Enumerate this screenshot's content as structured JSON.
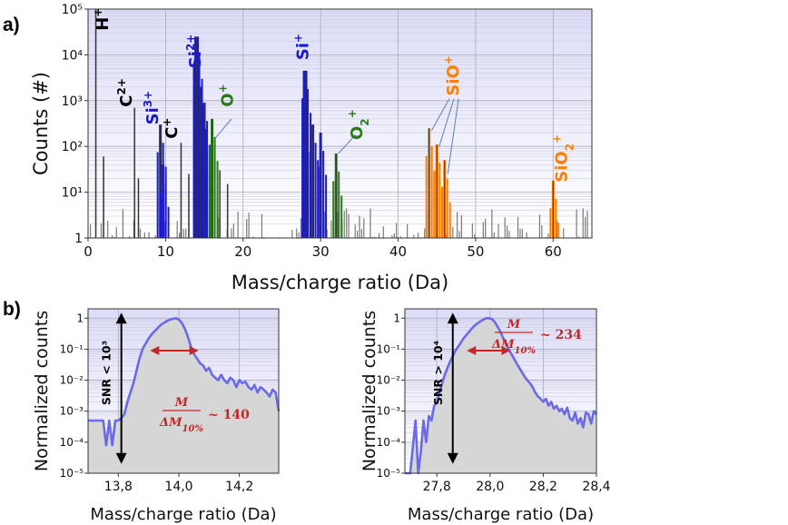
{
  "panel_labels": {
    "a": "a)",
    "b": "b)"
  },
  "chart_data": [
    {
      "id": "a",
      "type": "bar",
      "title": "",
      "xlabel": "Mass/charge ratio (Da)",
      "ylabel": "Counts (#)",
      "yscale": "log",
      "xlim": [
        0,
        65
      ],
      "ylim": [
        1,
        100000
      ],
      "xticks": [
        "0",
        "10",
        "20",
        "30",
        "40",
        "50",
        "60"
      ],
      "yticks": [
        "1",
        "10¹",
        "10²",
        "10³",
        "10⁴",
        "10⁵"
      ],
      "colors": {
        "background": "#e6e6fa",
        "bar": "#555555",
        "Si": "#1a1acc",
        "O": "#2d7a1a",
        "SiO": "#ff8000",
        "C": "#000000"
      },
      "peaks": [
        {
          "x": 1.0,
          "y": 100000,
          "group": "H"
        },
        {
          "x": 2.0,
          "y": 60,
          "group": "other"
        },
        {
          "x": 6.0,
          "y": 700,
          "group": "C"
        },
        {
          "x": 6.5,
          "y": 20,
          "group": "other"
        },
        {
          "x": 9.33,
          "y": 300,
          "group": "Si"
        },
        {
          "x": 9.67,
          "y": 40,
          "group": "Si"
        },
        {
          "x": 12.0,
          "y": 120,
          "group": "C"
        },
        {
          "x": 13.0,
          "y": 25,
          "group": "other"
        },
        {
          "x": 14.0,
          "y": 25000,
          "group": "Si"
        },
        {
          "x": 14.5,
          "y": 2000,
          "group": "Si"
        },
        {
          "x": 15.0,
          "y": 900,
          "group": "Si"
        },
        {
          "x": 16.0,
          "y": 400,
          "group": "O"
        },
        {
          "x": 17.0,
          "y": 30,
          "group": "other"
        },
        {
          "x": 18.0,
          "y": 15,
          "group": "other"
        },
        {
          "x": 28.0,
          "y": 4500,
          "group": "Si"
        },
        {
          "x": 29.0,
          "y": 300,
          "group": "Si"
        },
        {
          "x": 30.0,
          "y": 200,
          "group": "Si"
        },
        {
          "x": 32.0,
          "y": 70,
          "group": "O"
        },
        {
          "x": 44.0,
          "y": 250,
          "group": "SiO"
        },
        {
          "x": 45.0,
          "y": 110,
          "group": "SiO"
        },
        {
          "x": 46.0,
          "y": 50,
          "group": "SiO"
        },
        {
          "x": 60.0,
          "y": 18,
          "group": "SiO"
        }
      ],
      "labels": [
        {
          "text": "H",
          "sup": "+",
          "x": 2.6,
          "y": 60000,
          "color": "#000000",
          "rotate": true
        },
        {
          "text": "C",
          "sup": "2+",
          "x": 5.6,
          "y": 1500,
          "color": "#000000",
          "rotate": true
        },
        {
          "text": "Si",
          "sup": "3+",
          "x": 9.0,
          "y": 700,
          "color": "#1a1acc",
          "rotate": true
        },
        {
          "text": "C",
          "sup": "+",
          "x": 11.5,
          "y": 250,
          "color": "#000000",
          "rotate": true
        },
        {
          "text": "Si",
          "sup": "2+",
          "x": 14.5,
          "y": 12000,
          "color": "#1a1acc",
          "rotate": true
        },
        {
          "text": "O",
          "sup": "+",
          "x": 18.7,
          "y": 1300,
          "color": "#2d7a1a",
          "rotate": true
        },
        {
          "text": "Si",
          "sup": "+",
          "x": 28.4,
          "y": 15000,
          "color": "#1a1acc",
          "rotate": true
        },
        {
          "text": "O",
          "sub": "2",
          "sup": "+",
          "x": 35.4,
          "y": 300,
          "color": "#2d7a1a",
          "rotate": true
        },
        {
          "text": "SiO",
          "sup": "+",
          "x": 47.8,
          "y": 3500,
          "color": "#ff8000",
          "rotate": true
        },
        {
          "text": "SiO",
          "sub": "2",
          "sup": "+",
          "x": 61.8,
          "y": 55,
          "color": "#ff8000",
          "rotate": true
        }
      ]
    },
    {
      "id": "b-left",
      "type": "area",
      "xlabel": "Mass/charge ratio (Da)",
      "ylabel": "Normalized counts",
      "yscale": "log",
      "xlim": [
        13.7,
        14.33
      ],
      "ylim": [
        1e-05,
        2
      ],
      "xticks": [
        "13,8",
        "14,0",
        "14,2"
      ],
      "xtick_values": [
        13.8,
        14.0,
        14.2
      ],
      "yticks": [
        "10⁻⁵",
        "10⁻⁴",
        "10⁻³",
        "10⁻²",
        "10⁻¹",
        "1"
      ],
      "x": [
        13.7,
        13.72,
        13.74,
        13.75,
        13.76,
        13.77,
        13.78,
        13.79,
        13.8,
        13.81,
        13.82,
        13.83,
        13.84,
        13.85,
        13.86,
        13.87,
        13.88,
        13.89,
        13.9,
        13.91,
        13.92,
        13.93,
        13.94,
        13.95,
        13.96,
        13.97,
        13.98,
        13.99,
        14.0,
        14.01,
        14.02,
        14.03,
        14.04,
        14.05,
        14.06,
        14.07,
        14.08,
        14.09,
        14.1,
        14.11,
        14.12,
        14.13,
        14.14,
        14.15,
        14.16,
        14.17,
        14.18,
        14.19,
        14.2,
        14.21,
        14.22,
        14.23,
        14.24,
        14.25,
        14.26,
        14.27,
        14.28,
        14.29,
        14.3,
        14.31,
        14.32,
        14.33
      ],
      "y": [
        0.0005,
        0.0005,
        0.0005,
        0.0005,
        8e-05,
        0.0005,
        8e-05,
        0.0005,
        0.0005,
        0.0006,
        0.0008,
        0.002,
        0.004,
        0.008,
        0.02,
        0.05,
        0.1,
        0.15,
        0.22,
        0.3,
        0.38,
        0.48,
        0.6,
        0.7,
        0.8,
        0.9,
        0.95,
        1.0,
        0.9,
        0.7,
        0.45,
        0.25,
        0.12,
        0.07,
        0.05,
        0.035,
        0.03,
        0.02,
        0.025,
        0.015,
        0.012,
        0.01,
        0.015,
        0.01,
        0.008,
        0.012,
        0.01,
        0.006,
        0.01,
        0.008,
        0.009,
        0.006,
        0.005,
        0.007,
        0.004,
        0.006,
        0.005,
        0.004,
        0.003,
        0.005,
        0.004,
        0.001
      ],
      "snr_label": "SNR < 10³",
      "snr_arrow_x": 13.81,
      "fwhm": {
        "x1": 13.92,
        "x2": 14.05,
        "y": 0.09
      },
      "resolution": {
        "num": "M",
        "den": "ΔM",
        "den_sub": "10%",
        "value": "~ 140"
      }
    },
    {
      "id": "b-right",
      "type": "area",
      "xlabel": "Mass/charge ratio (Da)",
      "ylabel": "Normalized counts",
      "yscale": "log",
      "xlim": [
        27.68,
        28.4
      ],
      "ylim": [
        1e-05,
        2
      ],
      "xticks": [
        "27,8",
        "28,0",
        "28,2",
        "28,4"
      ],
      "xtick_values": [
        27.8,
        28.0,
        28.2,
        28.4
      ],
      "yticks": [
        "10⁻⁵",
        "10⁻⁴",
        "10⁻³",
        "10⁻²",
        "10⁻¹",
        "1"
      ],
      "x": [
        27.68,
        27.7,
        27.72,
        27.73,
        27.74,
        27.75,
        27.76,
        27.77,
        27.78,
        27.79,
        27.8,
        27.81,
        27.82,
        27.83,
        27.84,
        27.85,
        27.86,
        27.87,
        27.88,
        27.89,
        27.9,
        27.91,
        27.92,
        27.93,
        27.94,
        27.95,
        27.96,
        27.97,
        27.98,
        27.99,
        28.0,
        28.01,
        28.02,
        28.03,
        28.04,
        28.05,
        28.06,
        28.07,
        28.08,
        28.09,
        28.1,
        28.11,
        28.12,
        28.13,
        28.14,
        28.15,
        28.16,
        28.17,
        28.18,
        28.19,
        28.2,
        28.21,
        28.22,
        28.23,
        28.24,
        28.25,
        28.26,
        28.27,
        28.28,
        28.29,
        28.3,
        28.31,
        28.32,
        28.33,
        28.34,
        28.35,
        28.36,
        28.37,
        28.38,
        28.39,
        28.4
      ],
      "y": [
        1e-05,
        1e-05,
        0.0005,
        1e-05,
        5e-05,
        0.0005,
        0.0001,
        0.0007,
        0.0005,
        0.0015,
        0.002,
        0.004,
        0.008,
        0.015,
        0.025,
        0.04,
        0.06,
        0.09,
        0.12,
        0.16,
        0.22,
        0.28,
        0.35,
        0.45,
        0.55,
        0.65,
        0.75,
        0.85,
        0.95,
        1.0,
        0.98,
        0.9,
        0.7,
        0.5,
        0.35,
        0.22,
        0.15,
        0.1,
        0.07,
        0.05,
        0.035,
        0.025,
        0.018,
        0.013,
        0.01,
        0.008,
        0.006,
        0.004,
        0.003,
        0.0025,
        0.002,
        0.0025,
        0.0015,
        0.002,
        0.0012,
        0.0015,
        0.001,
        0.0012,
        0.0008,
        0.0013,
        0.0006,
        0.0005,
        0.0009,
        0.0004,
        0.0006,
        0.0003,
        0.0009,
        0.0008,
        0.0004,
        0.001,
        0.0008
      ],
      "snr_label": "SNR > 10⁴",
      "snr_arrow_x": 27.86,
      "fwhm": {
        "x1": 27.93,
        "x2": 28.06,
        "y": 0.09
      },
      "resolution": {
        "num": "M",
        "den": "ΔM",
        "den_sub": "10%",
        "value": "~ 234"
      }
    }
  ]
}
